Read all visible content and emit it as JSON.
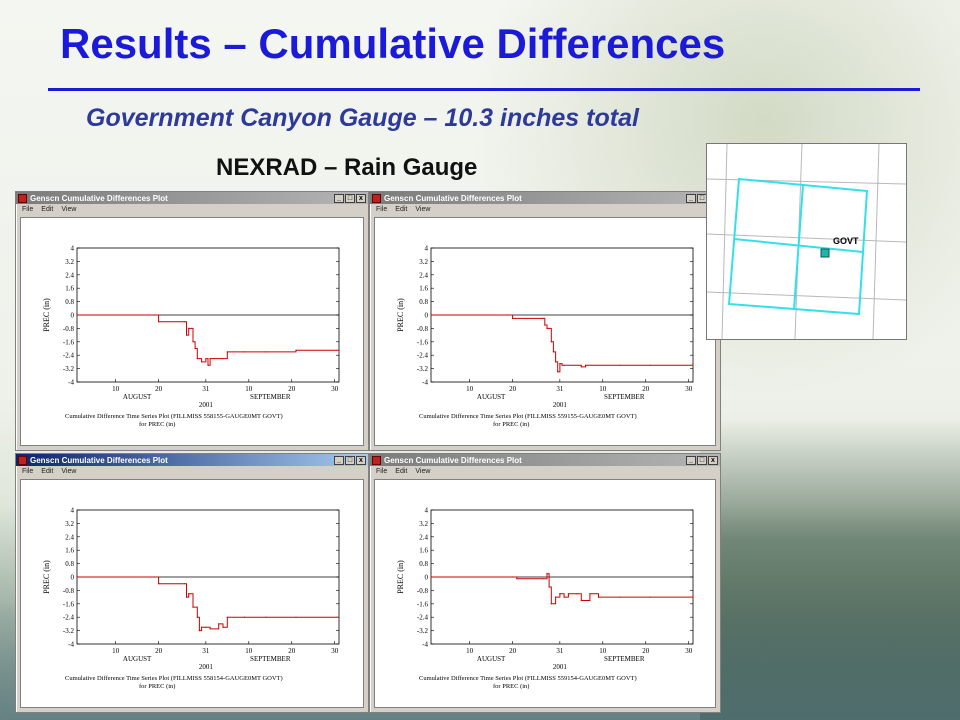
{
  "slide": {
    "title": "Results – Cumulative Differences",
    "subtitle": "Government Canyon Gauge – 10.3 inches total",
    "header_label": "NEXRAD – Rain Gauge"
  },
  "colors": {
    "title": "#1a1ad8",
    "subtitle": "#2d3a9a",
    "series": "#cc0000",
    "grid_cells": "#33e0e8"
  },
  "windows": [
    {
      "title": "Genscn Cumulative Differences Plot",
      "active": false,
      "menu": [
        "File",
        "Edit",
        "View"
      ],
      "caption": [
        "Cumulative Difference Time Series Plot (FILLMISS 558155-GAUGE0MT GOVT)",
        "for PREC (in)"
      ]
    },
    {
      "title": "Genscn Cumulative Differences Plot",
      "active": false,
      "menu": [
        "File",
        "Edit",
        "View"
      ],
      "caption": [
        "Cumulative Difference Time Series Plot (FILLMISS 559155-GAUGE0MT GOVT)",
        "for PREC (in)"
      ]
    },
    {
      "title": "Genscn Cumulative Differences Plot",
      "active": true,
      "menu": [
        "File",
        "Edit",
        "View"
      ],
      "caption": [
        "Cumulative Difference Time Series Plot (FILLMISS 558154-GAUGE0MT GOVT)",
        "for PREC (in)"
      ]
    },
    {
      "title": "Genscn Cumulative Differences Plot",
      "active": false,
      "menu": [
        "File",
        "Edit",
        "View"
      ],
      "caption": [
        "Cumulative Difference Time Series Plot (FILLMISS 559154-GAUGE0MT GOVT)",
        "for PREC (in)"
      ]
    }
  ],
  "window_buttons": [
    "_",
    "□",
    "x"
  ],
  "map": {
    "label": "GOVT",
    "gauge_icon": "gauge-marker-icon"
  },
  "chart_data": [
    {
      "type": "line",
      "ylabel": "PREC (in)",
      "yticks": [
        "4",
        "3.2",
        "2.4",
        "1.6",
        "0.8",
        "0",
        "-0.8",
        "-1.6",
        "-2.4",
        "-3.2",
        "-4"
      ],
      "ylim": [
        -4,
        4
      ],
      "xticks": [
        "10",
        "20",
        "31",
        "10",
        "20",
        "30"
      ],
      "xtick_days": [
        10,
        20,
        31,
        41,
        51,
        61
      ],
      "xlim": [
        1,
        62
      ],
      "months": [
        "AUGUST",
        "SEPTEMBER"
      ],
      "year": "2001",
      "series": [
        {
          "x": [
            1,
            19,
            20,
            26,
            26.5,
            27,
            28,
            28.5,
            29,
            30,
            31,
            31.5,
            32,
            33,
            35,
            36,
            40,
            45,
            52,
            62
          ],
          "y": [
            0,
            0,
            -0.4,
            -0.4,
            -1.2,
            -0.8,
            -1.6,
            -2.0,
            -2.6,
            -2.8,
            -2.6,
            -3.0,
            -2.6,
            -2.6,
            -2.6,
            -2.2,
            -2.2,
            -2.2,
            -2.1,
            -2.1
          ]
        }
      ]
    },
    {
      "type": "line",
      "ylabel": "PREC (in)",
      "yticks": [
        "4",
        "3.2",
        "2.4",
        "1.6",
        "0.8",
        "0",
        "-0.8",
        "-1.6",
        "-2.4",
        "-3.2",
        "-4"
      ],
      "ylim": [
        -4,
        4
      ],
      "xticks": [
        "10",
        "20",
        "31",
        "10",
        "20",
        "30"
      ],
      "xtick_days": [
        10,
        20,
        31,
        41,
        51,
        61
      ],
      "xlim": [
        1,
        62
      ],
      "months": [
        "AUGUST",
        "SEPTEMBER"
      ],
      "year": "2001",
      "series": [
        {
          "x": [
            1,
            19,
            20,
            27,
            27.5,
            28,
            29,
            29.5,
            30,
            30.5,
            31,
            31.5,
            32,
            36,
            37,
            45,
            52,
            62
          ],
          "y": [
            0,
            0,
            -0.2,
            -0.2,
            -0.6,
            -0.8,
            -1.6,
            -2.2,
            -2.8,
            -3.4,
            -2.9,
            -3.0,
            -3.0,
            -3.1,
            -3.0,
            -3.0,
            -3.0,
            -2.9
          ]
        }
      ]
    },
    {
      "type": "line",
      "ylabel": "PREC (in)",
      "yticks": [
        "4",
        "3.2",
        "2.4",
        "1.6",
        "0.8",
        "0",
        "-0.8",
        "-1.6",
        "-2.4",
        "-3.2",
        "-4"
      ],
      "ylim": [
        -4,
        4
      ],
      "xticks": [
        "10",
        "20",
        "31",
        "10",
        "20",
        "30"
      ],
      "xtick_days": [
        10,
        20,
        31,
        41,
        51,
        61
      ],
      "xlim": [
        1,
        62
      ],
      "months": [
        "AUGUST",
        "SEPTEMBER"
      ],
      "year": "2001",
      "series": [
        {
          "x": [
            1,
            19,
            20,
            26,
            26.5,
            27,
            28,
            29,
            29.5,
            30,
            31,
            32,
            34,
            35,
            36,
            40,
            45,
            52,
            62
          ],
          "y": [
            0,
            0,
            -0.4,
            -0.4,
            -1.2,
            -1.0,
            -1.8,
            -2.4,
            -3.2,
            -3.0,
            -3.0,
            -3.1,
            -2.8,
            -3.0,
            -2.4,
            -2.4,
            -2.4,
            -2.4,
            -2.4
          ]
        }
      ]
    },
    {
      "type": "line",
      "ylabel": "PREC (in)",
      "yticks": [
        "4",
        "3.2",
        "2.4",
        "1.6",
        "0.8",
        "0",
        "-0.8",
        "-1.6",
        "-2.4",
        "-3.2",
        "-4"
      ],
      "ylim": [
        -4,
        4
      ],
      "xticks": [
        "10",
        "20",
        "31",
        "10",
        "20",
        "30"
      ],
      "xtick_days": [
        10,
        20,
        31,
        41,
        51,
        61
      ],
      "xlim": [
        1,
        62
      ],
      "months": [
        "AUGUST",
        "SEPTEMBER"
      ],
      "year": "2001",
      "series": [
        {
          "x": [
            1,
            20,
            21,
            27,
            28,
            28.5,
            29,
            30,
            31,
            32,
            33,
            35,
            36,
            38,
            40,
            45,
            52,
            62
          ],
          "y": [
            0,
            0,
            -0.1,
            -0.1,
            0.2,
            -0.6,
            -1.6,
            -1.2,
            -1.0,
            -1.2,
            -1.0,
            -1.0,
            -1.4,
            -1.0,
            -1.2,
            -1.2,
            -1.2,
            -1.1
          ]
        }
      ]
    }
  ]
}
